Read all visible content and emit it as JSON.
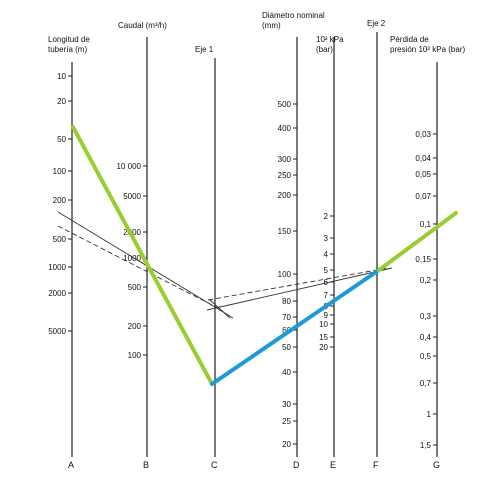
{
  "headers": {
    "A": [
      "Longitud de",
      "tubería (m)"
    ],
    "B": [
      "Caudal (m³/h)"
    ],
    "C": [
      "Eje 1"
    ],
    "D": [
      "Diámetro nominal",
      "(mm)"
    ],
    "E": [
      "10² kPa",
      "(bar)"
    ],
    "F": [
      "Eje 2"
    ],
    "G": [
      "Pérdida de",
      "presión 10² kPa (bar)"
    ]
  },
  "axis_letters": [
    "A",
    "B",
    "C",
    "D",
    "E",
    "F",
    "G"
  ],
  "scales": {
    "A": [
      "10",
      "20",
      "50",
      "100",
      "200",
      "500",
      "1000",
      "2000",
      "5000"
    ],
    "B": [
      "10 000",
      "5000",
      "2000",
      "1000",
      "500",
      "200",
      "100"
    ],
    "D": [
      "500",
      "400",
      "300",
      "250",
      "200",
      "150",
      "100",
      "80",
      "70",
      "60",
      "50",
      "40",
      "30",
      "25",
      "20"
    ],
    "E": [
      "2",
      "3",
      "4",
      "5",
      "6",
      "7",
      "8",
      "9",
      "10",
      "15",
      "20"
    ],
    "G": [
      "0,03",
      "0,04",
      "0,05",
      "0,07",
      "0,1",
      "0,15",
      "0,2",
      "0,3",
      "0,4",
      "0,5",
      "0,7",
      "1",
      "1,5"
    ]
  },
  "line_colors": {
    "green": "#9acd32",
    "blue": "#1e9ad6",
    "dark": "#333333"
  }
}
